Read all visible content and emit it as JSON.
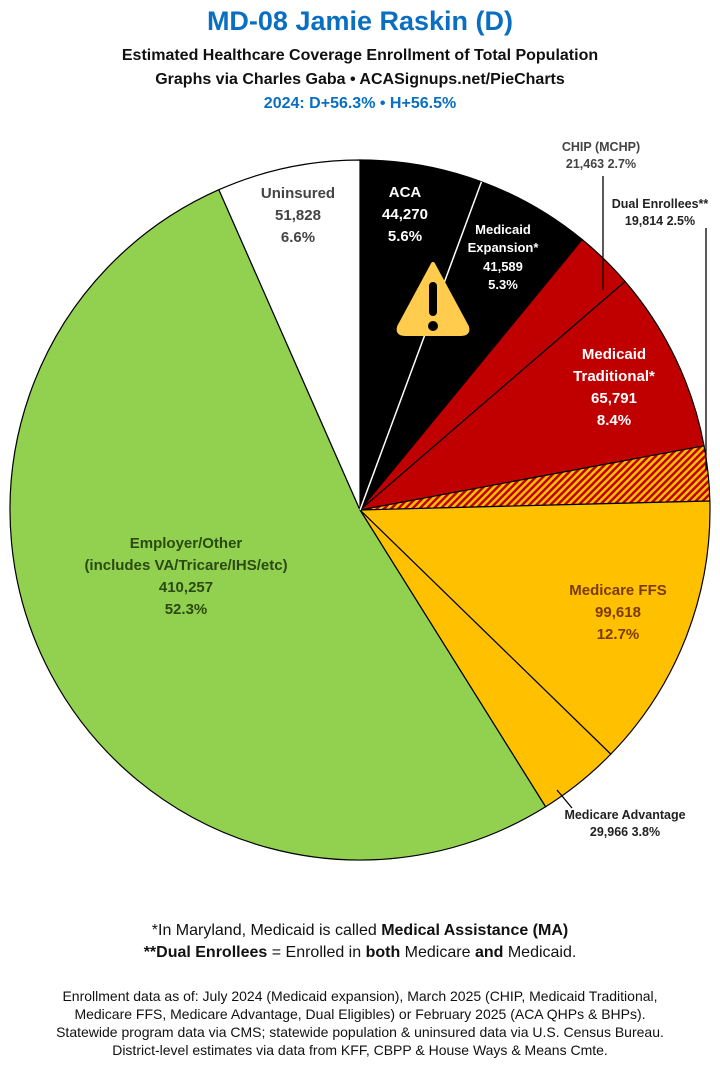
{
  "header": {
    "title": "MD-08 Jamie Raskin (D)",
    "subtitle": "Estimated Healthcare Coverage Enrollment of Total Population",
    "credit": "Graphs via Charles Gaba  •  ACASignups.net/PieCharts",
    "partisan": "2024: D+56.3% • H+56.5%"
  },
  "chart_data": {
    "type": "pie",
    "start": "top, clockwise",
    "slices": [
      {
        "name": "ACA",
        "value": 44270,
        "value_label": "44,270",
        "pct": 5.6,
        "pct_label": "5.6%",
        "color": "#000000"
      },
      {
        "name": "Medicaid Expansion*",
        "value": 41589,
        "value_label": "41,589",
        "pct": 5.3,
        "pct_label": "5.3%",
        "color": "#000000"
      },
      {
        "name": "CHIP (MCHP)",
        "value": 21463,
        "value_label": "21,463",
        "pct": 2.7,
        "pct_label": "2.7%",
        "color": "#c00000"
      },
      {
        "name": "Medicaid Traditional*",
        "value": 65791,
        "value_label": "65,791",
        "pct": 8.4,
        "pct_label": "8.4%",
        "color": "#c00000"
      },
      {
        "name": "Dual Enrollees**",
        "value": 19814,
        "value_label": "19,814",
        "pct": 2.5,
        "pct_label": "2.5%",
        "color": "hatched #c00000/#ffc000"
      },
      {
        "name": "Medicare FFS",
        "value": 99618,
        "value_label": "99,618",
        "pct": 12.7,
        "pct_label": "12.7%",
        "color": "#ffc000"
      },
      {
        "name": "Medicare Advantage",
        "value": 29966,
        "value_label": "29,966",
        "pct": 3.8,
        "pct_label": "3.8%",
        "color": "#ffc000"
      },
      {
        "name": "Employer/Other",
        "name2": "(includes VA/Tricare/IHS/etc)",
        "value": 410257,
        "value_label": "410,257",
        "pct": 52.3,
        "pct_label": "52.3%",
        "color": "#92d050"
      },
      {
        "name": "Uninsured",
        "value": 51828,
        "value_label": "51,828",
        "pct": 6.6,
        "pct_label": "6.6%",
        "color": "#ffffff"
      }
    ],
    "annotation_icon": "warning-icon"
  },
  "footnotes": {
    "f1_pre": "*In Maryland, Medicaid is called ",
    "f1_bold": "Medical Assistance (MA)",
    "f2_b1": "**Dual Enrollees",
    "f2_t1": " = Enrolled in ",
    "f2_b2": "both",
    "f2_t2": " Medicare ",
    "f2_b3": "and",
    "f2_t3": " Medicaid."
  },
  "sources": [
    "Enrollment data as of: July 2024 (Medicaid expansion), March 2025 (CHIP, Medicaid Traditional,",
    "Medicare FFS, Medicare Advantage, Dual Eligibles) or February 2025 (ACA QHPs & BHPs).",
    "Statewide program data via CMS; statewide population & uninsured data via U.S. Census Bureau.",
    "District-level estimates via data from KFF, CBPP & House Ways & Means Cmte."
  ]
}
